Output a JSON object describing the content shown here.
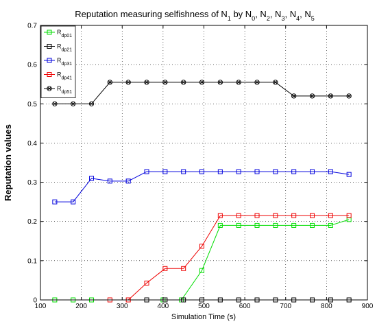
{
  "chart_data": {
    "type": "line",
    "title": {
      "parts": [
        {
          "t": "Reputation measuring selfishness of N"
        },
        {
          "t": "1",
          "sub": true
        },
        {
          "t": " by N"
        },
        {
          "t": "0",
          "sub": true
        },
        {
          "t": ", N"
        },
        {
          "t": "2",
          "sub": true
        },
        {
          "t": ", N"
        },
        {
          "t": "3",
          "sub": true
        },
        {
          "t": ", N"
        },
        {
          "t": "4",
          "sub": true
        },
        {
          "t": ", N"
        },
        {
          "t": "5",
          "sub": true
        }
      ]
    },
    "xlabel": "Simulation Time (s)",
    "ylabel": "Reputation values",
    "xlim": [
      100,
      900
    ],
    "ylim": [
      0,
      0.7
    ],
    "xticks": [
      100,
      200,
      300,
      400,
      500,
      600,
      700,
      800,
      900
    ],
    "yticks": [
      0,
      0.1,
      0.2,
      0.3,
      0.4,
      0.5,
      0.6,
      0.7
    ],
    "grid": "dotted",
    "legend_position": "top-left",
    "series": [
      {
        "name_main": "R",
        "name_sub": "dp01",
        "color": "#00dd00",
        "marker": "square",
        "x": [
          135,
          180,
          225,
          400,
          445,
          495,
          540,
          585,
          630,
          675,
          720,
          765,
          810,
          855
        ],
        "y": [
          0,
          0,
          0,
          0,
          0,
          0.075,
          0.19,
          0.19,
          0.19,
          0.19,
          0.19,
          0.19,
          0.19,
          0.205
        ]
      },
      {
        "name_main": "R",
        "name_sub": "dp21",
        "color": "#000000",
        "marker": "square",
        "x": [
          360,
          405,
          450,
          495,
          540,
          585,
          630,
          675,
          720,
          765,
          810,
          855
        ],
        "y": [
          0,
          0,
          0,
          0,
          0,
          0,
          0,
          0,
          0,
          0,
          0,
          0
        ]
      },
      {
        "name_main": "R",
        "name_sub": "dp31",
        "color": "#0000dd",
        "marker": "square",
        "x": [
          135,
          180,
          225,
          270,
          315,
          360,
          405,
          450,
          495,
          540,
          585,
          630,
          675,
          720,
          765,
          810,
          855
        ],
        "y": [
          0.25,
          0.25,
          0.31,
          0.303,
          0.303,
          0.327,
          0.327,
          0.327,
          0.327,
          0.327,
          0.327,
          0.327,
          0.327,
          0.327,
          0.327,
          0.327,
          0.32
        ]
      },
      {
        "name_main": "R",
        "name_sub": "dp41",
        "color": "#ee0000",
        "marker": "square",
        "x": [
          270,
          315,
          360,
          405,
          450,
          495,
          540,
          585,
          630,
          675,
          720,
          765,
          810,
          855
        ],
        "y": [
          0,
          0,
          0.043,
          0.08,
          0.08,
          0.137,
          0.215,
          0.215,
          0.215,
          0.215,
          0.215,
          0.215,
          0.215,
          0.215
        ]
      },
      {
        "name_main": "R",
        "name_sub": "dp51",
        "color": "#000000",
        "marker": "star",
        "x": [
          135,
          180,
          225,
          270,
          315,
          360,
          405,
          450,
          495,
          540,
          585,
          630,
          675,
          720,
          765,
          810,
          855
        ],
        "y": [
          0.5,
          0.5,
          0.5,
          0.555,
          0.555,
          0.555,
          0.555,
          0.555,
          0.555,
          0.555,
          0.555,
          0.555,
          0.555,
          0.52,
          0.52,
          0.52,
          0.52
        ]
      }
    ]
  }
}
